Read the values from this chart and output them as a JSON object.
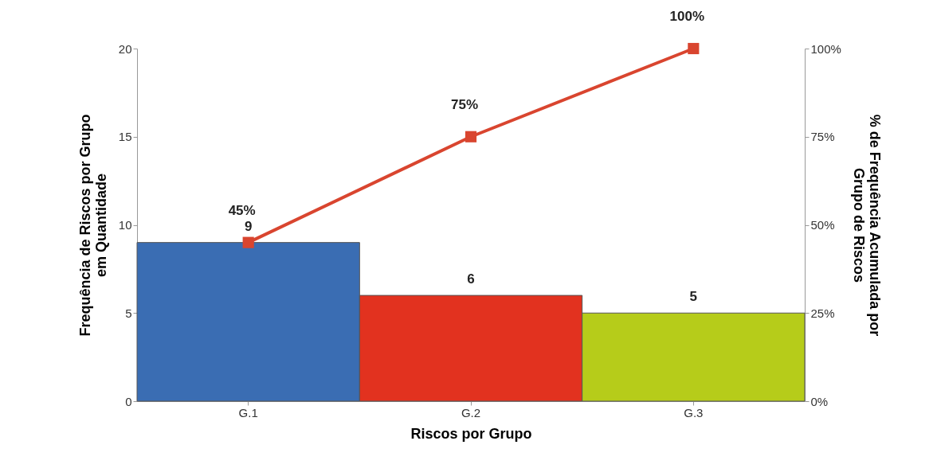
{
  "chart_data": {
    "type": "bar",
    "categories": [
      "G.1",
      "G.2",
      "G.3"
    ],
    "xlabel": "Riscos por Grupo",
    "ylabel": "Frequência de Riscos por Grupo\nem Quantidade",
    "y2label": "% de Frequência Acumulada por\nGrupo de Riscos",
    "ylim": [
      0,
      20
    ],
    "yticks": [
      0,
      5,
      10,
      15,
      20
    ],
    "y2lim": [
      0,
      100
    ],
    "y2ticks": [
      {
        "value": 0,
        "label": "0%"
      },
      {
        "value": 25,
        "label": "25%"
      },
      {
        "value": 50,
        "label": "50%"
      },
      {
        "value": 75,
        "label": "75%"
      },
      {
        "value": 100,
        "label": "100%"
      }
    ],
    "grid": false,
    "series": [
      {
        "colors": [
          "#3a6db3",
          "#e2321f",
          "#b6cc1a"
        ],
        "values": [
          9,
          6,
          5
        ],
        "value_labels": [
          "9",
          "6",
          "5"
        ]
      },
      {
        "type": "line",
        "axis": "y2",
        "color": "#d9452f",
        "marker": "square",
        "line_style": "solid",
        "values": [
          45,
          75,
          100
        ],
        "value_labels": [
          "45%",
          "75%",
          "100%"
        ]
      }
    ]
  }
}
